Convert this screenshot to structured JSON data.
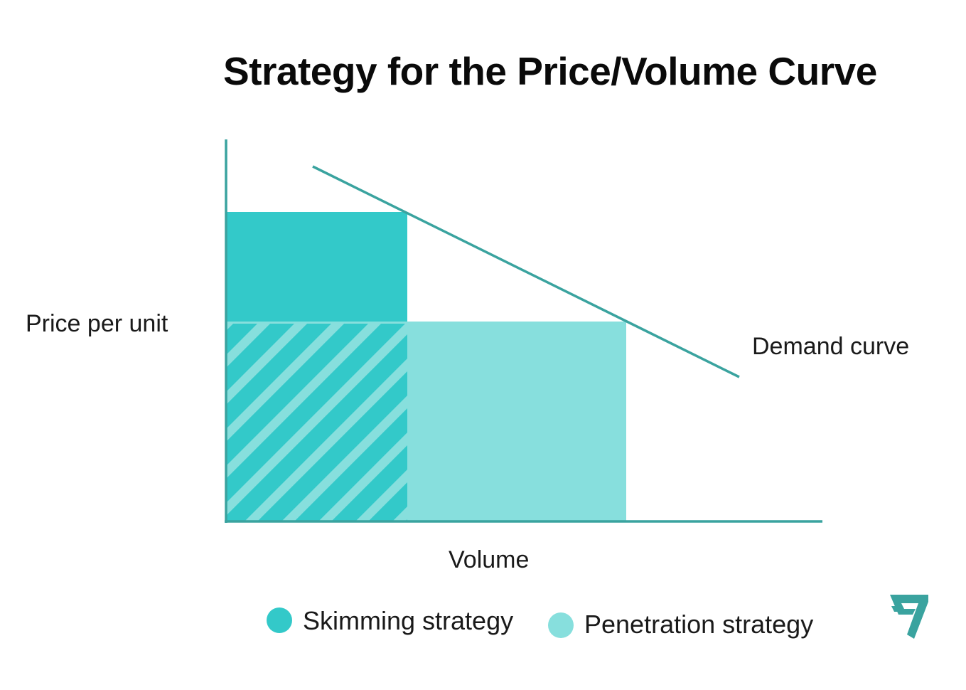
{
  "title": "Strategy for the Price/Volume Curve",
  "axes": {
    "y_label": "Price per unit",
    "x_label": "Volume"
  },
  "demand_curve_label": "Demand curve",
  "legend": [
    {
      "label": "Skimming strategy",
      "color": "#33c9c9"
    },
    {
      "label": "Penetration strategy",
      "color": "#87dfdd"
    }
  ],
  "colors": {
    "axis": "#3aa39f",
    "skimming": "#33c9c9",
    "penetration": "#87dfdd",
    "demand_line": "#3aa39f",
    "logo": "#3aa39f"
  },
  "icons": {
    "brand_logo": "brand-logo-icon"
  }
}
